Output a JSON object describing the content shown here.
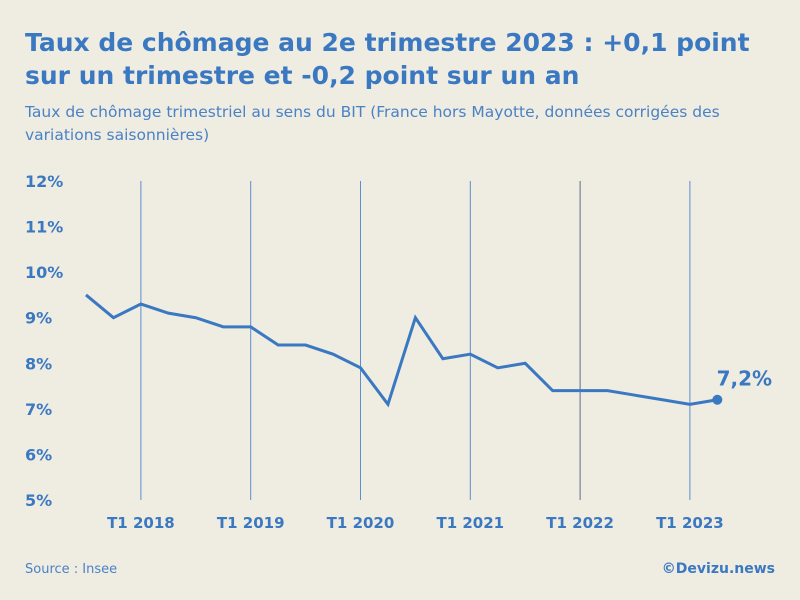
{
  "header": {
    "title": "Taux de chômage au 2e trimestre 2023 : +0,1 point sur un trimestre et -0,2 point sur un an",
    "subtitle": "Taux de chômage trimestriel au sens du BIT (France hors Mayotte, données corrigées des variations saisonnières)"
  },
  "footer": {
    "source": "Source : Insee",
    "credit": "©Devizu.news"
  },
  "colors": {
    "line": "#3a78c2",
    "background": "#efece2"
  },
  "chart_data": {
    "type": "line",
    "title": "",
    "xlabel": "",
    "ylabel": "",
    "ylim": [
      5,
      12
    ],
    "y_ticks": [
      "5%",
      "6%",
      "7%",
      "8%",
      "9%",
      "10%",
      "11%",
      "12%"
    ],
    "x_ticks": [
      "T1 2018",
      "T1 2019",
      "T1 2020",
      "T1 2021",
      "T1 2022",
      "T1 2023"
    ],
    "grid": "vertical lines at T1 of each year",
    "x": [
      "T3 2017",
      "T4 2017",
      "T1 2018",
      "T2 2018",
      "T3 2018",
      "T4 2018",
      "T1 2019",
      "T2 2019",
      "T3 2019",
      "T4 2019",
      "T1 2020",
      "T2 2020",
      "T3 2020",
      "T4 2020",
      "T1 2021",
      "T2 2021",
      "T3 2021",
      "T4 2021",
      "T1 2022",
      "T2 2022",
      "T3 2022",
      "T4 2022",
      "T1 2023",
      "T2 2023"
    ],
    "series": [
      {
        "values": [
          9.5,
          9.0,
          9.3,
          9.1,
          9.0,
          8.8,
          8.8,
          8.4,
          8.4,
          8.2,
          7.9,
          7.1,
          9.0,
          8.1,
          8.2,
          7.9,
          8.0,
          7.4,
          7.4,
          7.4,
          7.3,
          7.2,
          7.1,
          7.2
        ]
      }
    ],
    "annotation": "7,2%"
  }
}
